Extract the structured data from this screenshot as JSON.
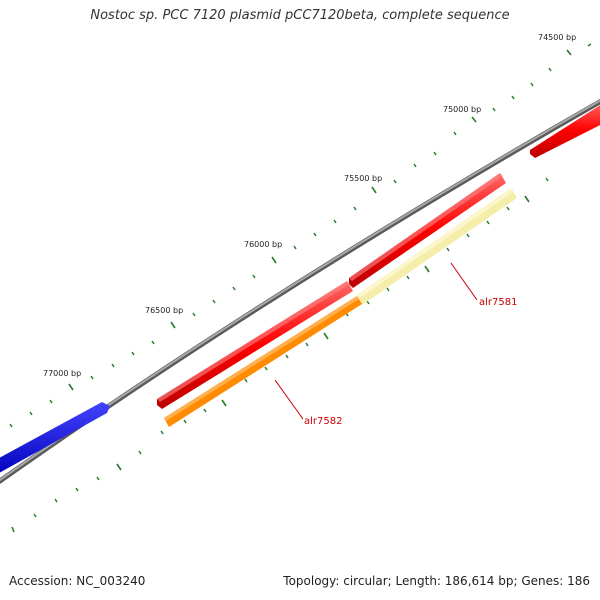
{
  "title": "Nostoc sp. PCC 7120 plasmid pCC7120beta, complete sequence",
  "ticks": [
    {
      "label": "74500 bp"
    },
    {
      "label": "75000 bp"
    },
    {
      "label": "75500 bp"
    },
    {
      "label": "76000 bp"
    },
    {
      "label": "76500 bp"
    },
    {
      "label": "77000 bp"
    }
  ],
  "genes": [
    {
      "label": "alr7581",
      "color": "#f5eeaa",
      "highlight": true
    },
    {
      "label": "alr7582",
      "color": "#ff8c00",
      "highlight": true
    }
  ],
  "colors": {
    "backbone": "#808080",
    "forward_feature": "#ff0000",
    "reverse_feature": "#0000ee",
    "tick": "#2a7a2a",
    "label_line": "#cc0000"
  },
  "footer": {
    "accession": "Accession: NC_003240",
    "summary": "Topology: circular; Length: 186,614 bp; Genes: 186"
  }
}
